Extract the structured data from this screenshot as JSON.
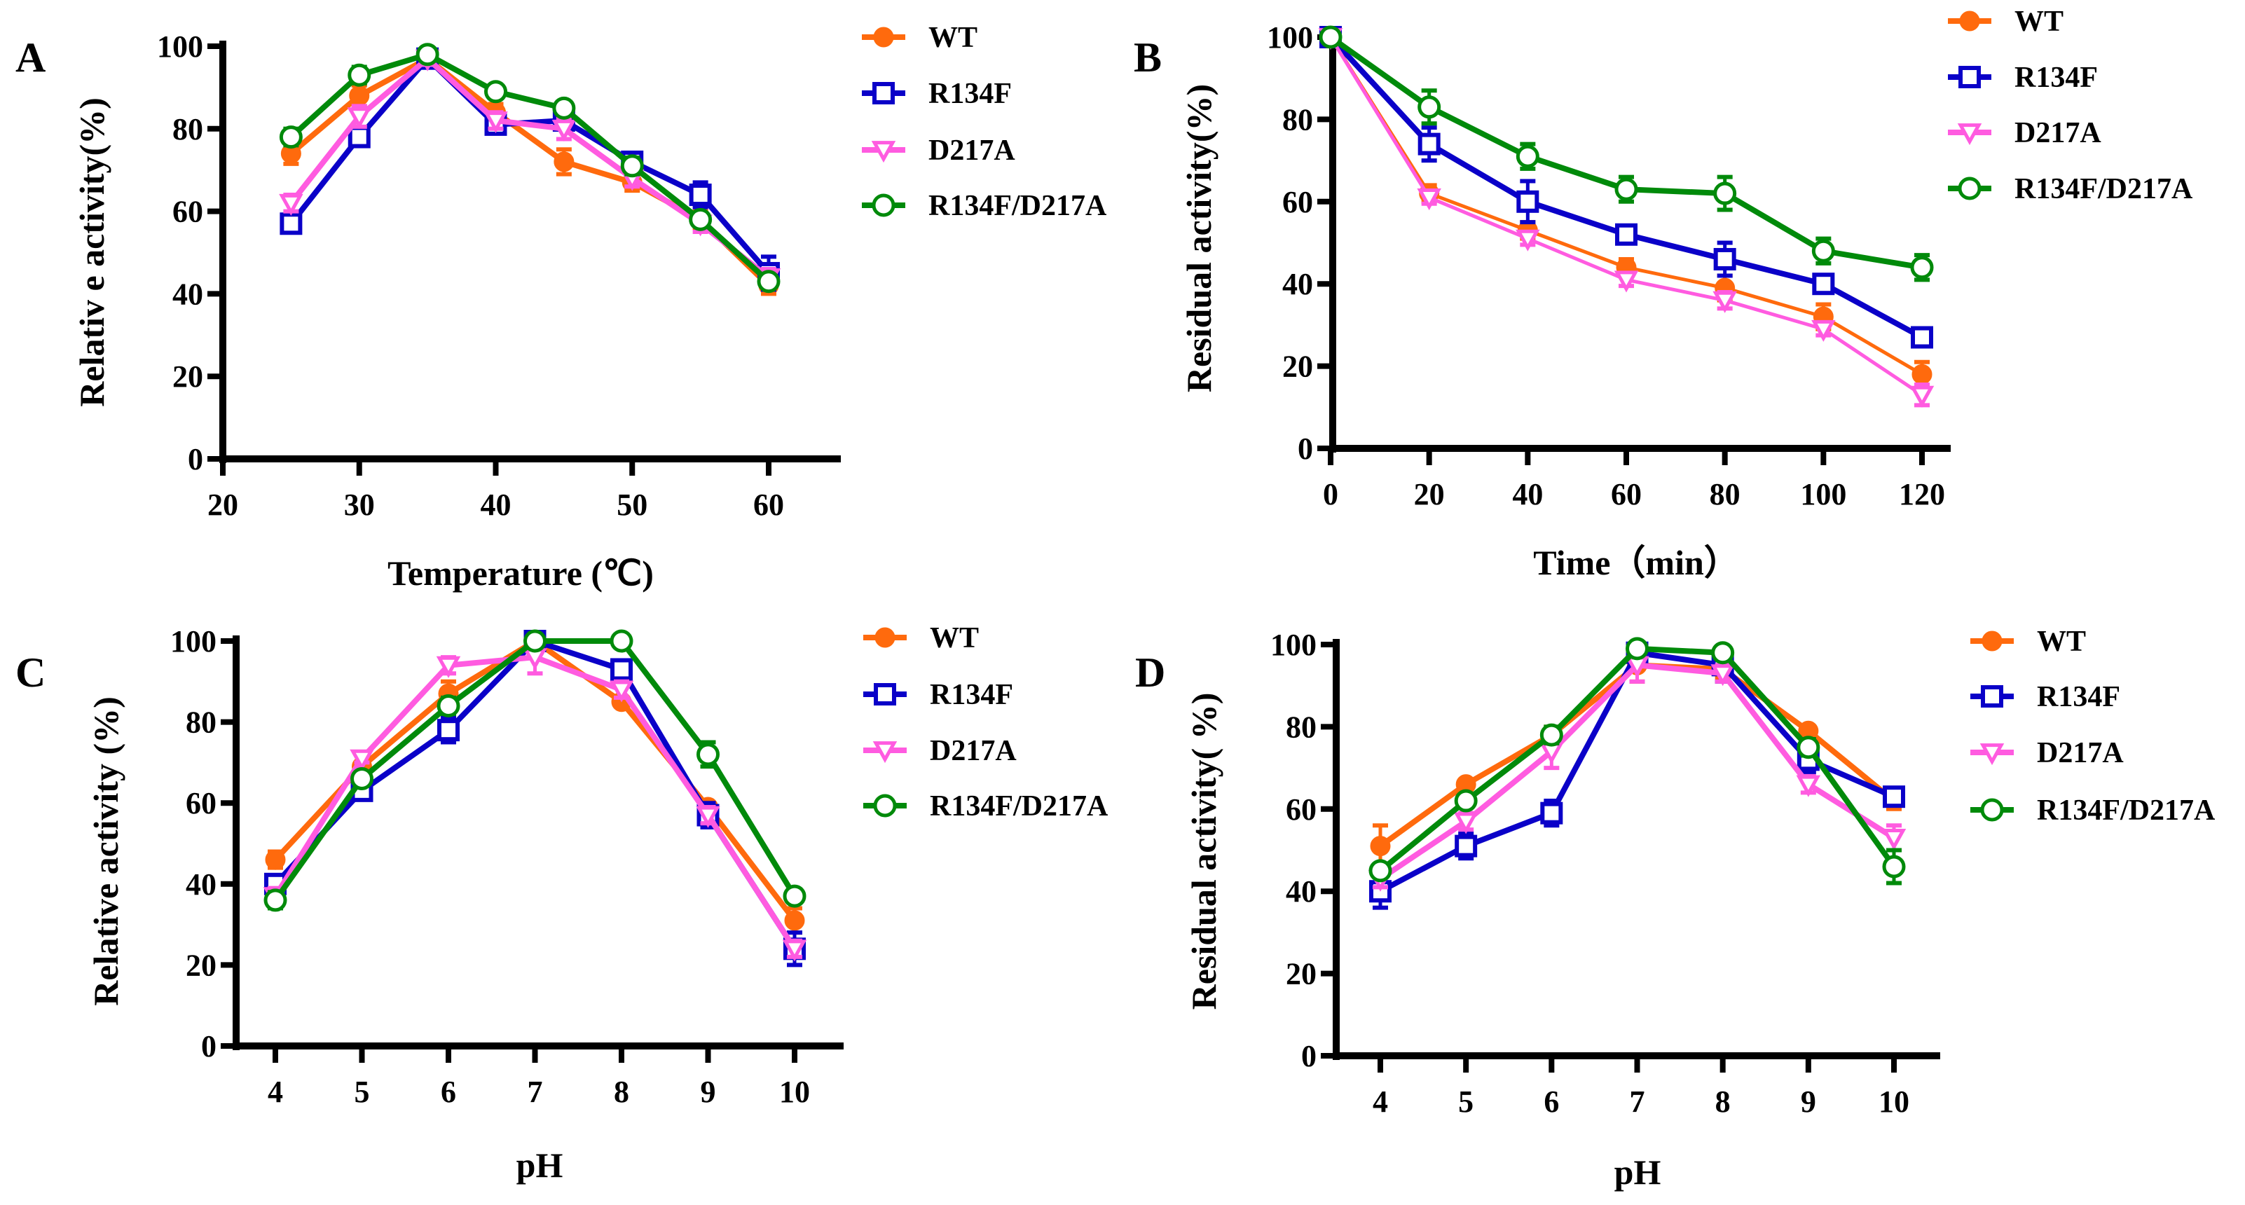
{
  "chart_data": [
    {
      "panel": "A",
      "type": "line",
      "title": "",
      "xlabel": "Temperature (℃)",
      "ylabel": "Relativ e  activity(%)",
      "xlim": [
        20,
        65
      ],
      "ylim": [
        0,
        100
      ],
      "xticks": [
        20,
        30,
        40,
        50,
        60
      ],
      "yticks": [
        0,
        20,
        40,
        60,
        80,
        100
      ],
      "grid": false,
      "legend": "right",
      "x": [
        25,
        30,
        35,
        40,
        45,
        50,
        55,
        60
      ],
      "series": [
        {
          "name": "WT",
          "values": [
            74,
            88,
            97,
            84,
            72,
            67,
            58,
            42
          ],
          "errors": [
            2.5,
            2.5,
            2,
            2,
            3,
            2,
            2,
            2
          ]
        },
        {
          "name": "R134F",
          "values": [
            57,
            78,
            97,
            81,
            82,
            72,
            64,
            45
          ],
          "errors": [
            2,
            1.5,
            2,
            2,
            2,
            2,
            3,
            4
          ]
        },
        {
          "name": "D217A",
          "values": [
            62,
            83,
            97,
            82,
            80,
            68,
            57,
            44
          ],
          "errors": [
            2,
            2.5,
            1.5,
            2,
            2.5,
            2,
            2,
            2
          ]
        },
        {
          "name": "R134F/D217A",
          "values": [
            78,
            93,
            98,
            89,
            85,
            71,
            58,
            43
          ],
          "errors": [
            2,
            2,
            1,
            1,
            1.5,
            2,
            1.5,
            1.5
          ]
        }
      ]
    },
    {
      "panel": "B",
      "type": "line",
      "title": "",
      "xlabel": "Time（min）",
      "ylabel": "Residual activity(%)",
      "xlim": [
        0,
        125
      ],
      "ylim": [
        0,
        100
      ],
      "xticks": [
        0,
        20,
        40,
        60,
        80,
        100,
        120
      ],
      "yticks": [
        0,
        20,
        40,
        60,
        80,
        100
      ],
      "grid": false,
      "legend": "right",
      "x": [
        0,
        20,
        40,
        60,
        80,
        100,
        120
      ],
      "series": [
        {
          "name": "WT",
          "values": [
            100,
            62,
            53,
            44,
            39,
            32,
            18
          ],
          "errors": [
            0.5,
            2,
            2,
            2,
            3,
            3,
            3
          ]
        },
        {
          "name": "R134F",
          "values": [
            100,
            74,
            60,
            52,
            46,
            40,
            27
          ],
          "errors": [
            0.5,
            4,
            5,
            2,
            4,
            2,
            2
          ]
        },
        {
          "name": "D217A",
          "values": [
            100,
            61,
            51,
            41,
            36,
            29,
            13
          ],
          "errors": [
            0.5,
            1.5,
            1.5,
            1.5,
            2,
            1.5,
            2.5
          ]
        },
        {
          "name": "R134F/D217A",
          "values": [
            100,
            83,
            71,
            63,
            62,
            48,
            44
          ],
          "errors": [
            0.5,
            4,
            3,
            3,
            4,
            3,
            3
          ]
        }
      ]
    },
    {
      "panel": "C",
      "type": "line",
      "title": "",
      "xlabel": "pH",
      "ylabel": "Relative activity (%)",
      "xlim": [
        3.4,
        10.6
      ],
      "ylim": [
        0,
        100
      ],
      "xticks": [
        4,
        5,
        6,
        7,
        8,
        9,
        10
      ],
      "yticks": [
        0,
        20,
        40,
        60,
        80,
        100
      ],
      "grid": false,
      "legend": "right",
      "x": [
        4,
        5,
        6,
        7,
        8,
        9,
        10
      ],
      "series": [
        {
          "name": "WT",
          "values": [
            46,
            69,
            87,
            100,
            85,
            59,
            31
          ],
          "errors": [
            2,
            1,
            3,
            1,
            1,
            1,
            3
          ]
        },
        {
          "name": "R134F",
          "values": [
            40,
            63,
            78,
            100,
            93,
            57,
            24
          ],
          "errors": [
            2,
            1,
            3,
            1,
            2,
            3,
            4
          ]
        },
        {
          "name": "D217A",
          "values": [
            37,
            71,
            94,
            96,
            88,
            57,
            24
          ],
          "errors": [
            2,
            1,
            2,
            4,
            2,
            2,
            2
          ]
        },
        {
          "name": "R134F/D217A",
          "values": [
            36,
            66,
            84,
            100,
            100,
            72,
            37
          ],
          "errors": [
            2,
            1,
            2,
            1,
            1,
            3,
            1
          ]
        }
      ]
    },
    {
      "panel": "D",
      "type": "line",
      "title": "",
      "xlabel": "pH",
      "ylabel": "Residual activity( %)",
      "xlim": [
        3.45,
        10.55
      ],
      "ylim": [
        0,
        100
      ],
      "xticks": [
        4,
        5,
        6,
        7,
        8,
        9,
        10
      ],
      "yticks": [
        0,
        20,
        40,
        60,
        80,
        100
      ],
      "grid": false,
      "legend": "right",
      "x": [
        4,
        5,
        6,
        7,
        8,
        9,
        10
      ],
      "series": [
        {
          "name": "WT",
          "values": [
            51,
            66,
            78,
            95,
            94,
            79,
            62
          ],
          "errors": [
            5,
            1,
            2,
            4,
            2,
            1,
            2
          ]
        },
        {
          "name": "R134F",
          "values": [
            40,
            51,
            59,
            98,
            95,
            72,
            63
          ],
          "errors": [
            4,
            3,
            3,
            2,
            4,
            3,
            2
          ]
        },
        {
          "name": "D217A",
          "values": [
            43,
            57,
            74,
            95,
            93,
            66,
            53
          ],
          "errors": [
            2,
            2,
            4,
            4,
            2,
            2,
            3
          ]
        },
        {
          "name": "R134F/D217A",
          "values": [
            45,
            62,
            78,
            99,
            98,
            75,
            46
          ],
          "errors": [
            1,
            1,
            2,
            1,
            1,
            2,
            4
          ]
        }
      ]
    }
  ],
  "series_styles": [
    {
      "name": "WT",
      "color": "#ff6a0d",
      "marker": "filled-circle"
    },
    {
      "name": "R134F",
      "color": "#0a00c8",
      "marker": "open-square"
    },
    {
      "name": "D217A",
      "color": "#ff5be0",
      "marker": "open-down-triangle"
    },
    {
      "name": "R134F/D217A",
      "color": "#008a0a",
      "marker": "open-circle"
    }
  ]
}
